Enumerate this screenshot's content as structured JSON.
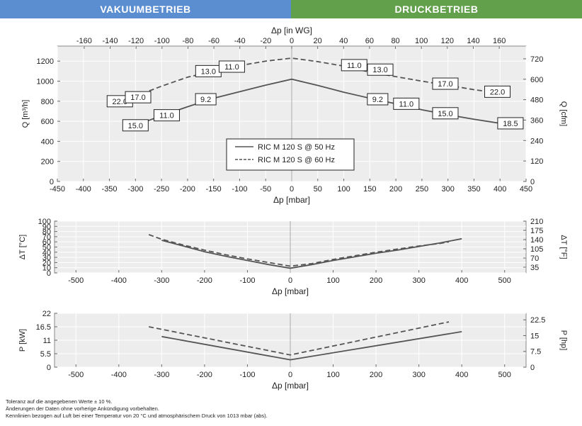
{
  "header": {
    "left_title": "VAKUUMBETRIEB",
    "right_title": "DRUCKBETRIEB"
  },
  "colors": {
    "vacuum_banner": "#5b8ed1",
    "pressure_banner": "#63a04c",
    "curve": "#555555",
    "plot_bg": "#ededed",
    "grid": "#ffffff"
  },
  "chart_data": [
    {
      "id": "flow",
      "type": "line",
      "xlabel": "Δp [mbar]",
      "x2label": "Δp [in WG]",
      "ylabel": "Q [m³/h]",
      "y2label": "Q [cfm]",
      "xlim": [
        -450,
        450
      ],
      "ylim": [
        0,
        1350
      ],
      "xticks": [
        -450,
        -400,
        -350,
        -300,
        -250,
        -200,
        -150,
        -100,
        -50,
        0,
        50,
        100,
        150,
        200,
        250,
        300,
        350,
        400,
        450
      ],
      "x2ticks": [
        -160,
        -140,
        -120,
        -100,
        -80,
        -60,
        -40,
        -20,
        0,
        20,
        40,
        60,
        80,
        100,
        120,
        140,
        160
      ],
      "yticks": [
        0,
        200,
        400,
        600,
        800,
        1000,
        1200
      ],
      "y2ticks": [
        0,
        120,
        240,
        360,
        480,
        600,
        720
      ],
      "legend": {
        "position": "center",
        "entries": [
          "RIC M 120 S @ 50 Hz",
          "RIC M 120 S @ 60 Hz"
        ]
      },
      "series": [
        {
          "name": "RIC M 120 S @ 50 Hz",
          "style": "solid",
          "x": [
            -300,
            -250,
            -200,
            -150,
            -100,
            -50,
            0,
            50,
            100,
            150,
            200,
            250,
            300,
            350,
            400
          ],
          "y": [
            560,
            655,
            745,
            830,
            895,
            960,
            1020,
            958,
            890,
            830,
            775,
            715,
            665,
            620,
            580
          ]
        },
        {
          "name": "RIC M 120 S @ 60 Hz",
          "style": "dashed",
          "x": [
            -330,
            -300,
            -250,
            -200,
            -150,
            -100,
            -50,
            0,
            50,
            100,
            150,
            200,
            250,
            300,
            350,
            380
          ],
          "y": [
            800,
            850,
            950,
            1040,
            1100,
            1155,
            1200,
            1230,
            1195,
            1150,
            1090,
            1045,
            1000,
            960,
            915,
            895
          ]
        }
      ],
      "annotations": [
        {
          "text": "15.0",
          "x": -300,
          "y": 560
        },
        {
          "text": "11.0",
          "x": -240,
          "y": 660
        },
        {
          "text": "9.2",
          "x": -165,
          "y": 820
        },
        {
          "text": "22.0",
          "x": -330,
          "y": 800
        },
        {
          "text": "17.0",
          "x": -295,
          "y": 840
        },
        {
          "text": "13.0",
          "x": -160,
          "y": 1100
        },
        {
          "text": "11.0",
          "x": -115,
          "y": 1145
        },
        {
          "text": "11.0",
          "x": 120,
          "y": 1160
        },
        {
          "text": "13.0",
          "x": 170,
          "y": 1115
        },
        {
          "text": "17.0",
          "x": 295,
          "y": 975
        },
        {
          "text": "22.0",
          "x": 395,
          "y": 895
        },
        {
          "text": "9.2",
          "x": 165,
          "y": 820
        },
        {
          "text": "11.0",
          "x": 220,
          "y": 775
        },
        {
          "text": "15.0",
          "x": 295,
          "y": 680
        },
        {
          "text": "18.5",
          "x": 420,
          "y": 580
        }
      ]
    },
    {
      "id": "temp",
      "type": "line",
      "xlabel": "Δp [mbar]",
      "ylabel": "ΔT [°C]",
      "y2label": "ΔT [°F]",
      "xlim": [
        -550,
        550
      ],
      "ylim": [
        0,
        100
      ],
      "xticks": [
        -500,
        -400,
        -300,
        -200,
        -100,
        0,
        100,
        200,
        300,
        400,
        500
      ],
      "yticks": [
        0,
        10,
        20,
        30,
        40,
        50,
        60,
        70,
        80,
        90,
        100
      ],
      "y2ticks": [
        35,
        70,
        105,
        140,
        175,
        210
      ],
      "series": [
        {
          "name": "RIC M 120 S @ 50 Hz",
          "style": "solid",
          "x": [
            -300,
            -250,
            -200,
            -150,
            -100,
            -50,
            0,
            50,
            100,
            150,
            200,
            250,
            300,
            350,
            400
          ],
          "y": [
            63,
            52,
            41,
            32,
            24,
            16,
            9,
            16,
            24,
            31,
            38,
            44,
            51,
            58,
            66
          ]
        },
        {
          "name": "RIC M 120 S @ 60 Hz",
          "style": "dashed",
          "x": [
            -330,
            -300,
            -250,
            -200,
            -150,
            -100,
            -50,
            0,
            50,
            100,
            150,
            200,
            250,
            300,
            350,
            370
          ],
          "y": [
            74,
            65,
            54,
            44,
            35,
            27,
            20,
            13,
            18,
            26,
            33,
            40,
            46,
            52,
            57,
            60
          ]
        }
      ]
    },
    {
      "id": "power",
      "type": "line",
      "xlabel": "Δp [mbar]",
      "ylabel": "P [kW]",
      "y2label": "P [hp]",
      "xlim": [
        -550,
        550
      ],
      "ylim": [
        0,
        22
      ],
      "xticks": [
        -500,
        -400,
        -300,
        -200,
        -100,
        0,
        100,
        200,
        300,
        400,
        500
      ],
      "yticks": [
        0,
        5.5,
        11,
        16.5,
        22
      ],
      "y2ticks": [
        0,
        7.5,
        15,
        22.5
      ],
      "series": [
        {
          "name": "RIC M 120 S @ 50 Hz",
          "style": "solid",
          "x": [
            -300,
            0,
            400
          ],
          "y": [
            12.5,
            3,
            14.5
          ]
        },
        {
          "name": "RIC M 120 S @ 60 Hz",
          "style": "dashed",
          "x": [
            -330,
            0,
            370
          ],
          "y": [
            16.5,
            5,
            18.5
          ]
        }
      ]
    }
  ],
  "footer": {
    "line1": "Toleranz auf die angegebenen Werte ± 10 %.",
    "line2": "Änderungen der Daten ohne vorherige Ankündigung vorbehalten.",
    "line3": "Kennlinien bezogen auf Luft bei einer Temperatur von 20 °C und atmosphärischem Druck von 1013 mbar (abs)."
  }
}
